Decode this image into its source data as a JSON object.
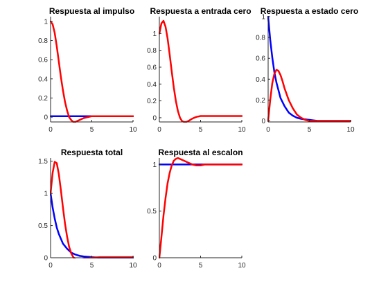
{
  "colors": {
    "blue": "#0000ff",
    "red": "#ff0000",
    "axis": "#262626"
  },
  "chart_data": [
    {
      "type": "line",
      "title": "Respuesta al impulso",
      "xlim": [
        0,
        10
      ],
      "ylim": [
        -0.05,
        1.05
      ],
      "xticks": [
        0,
        5,
        10
      ],
      "yticks": [
        0,
        0.2,
        0.4,
        0.6,
        0.8,
        1
      ],
      "ytick_labels": [
        "0",
        "0.2",
        "0.4",
        "0.6",
        "0.8",
        "1"
      ],
      "series": [
        {
          "color": "blue",
          "x": [
            0,
            10
          ],
          "y": [
            0.01,
            0.01
          ]
        },
        {
          "color": "red",
          "x": [
            0,
            0.25,
            0.5,
            0.75,
            1,
            1.25,
            1.5,
            1.75,
            2,
            2.25,
            2.5,
            2.75,
            3,
            3.5,
            4,
            4.5,
            5,
            5.5,
            6,
            7,
            8,
            9,
            10
          ],
          "y": [
            1.0,
            0.97,
            0.88,
            0.74,
            0.58,
            0.42,
            0.28,
            0.16,
            0.07,
            0.0,
            -0.03,
            -0.05,
            -0.05,
            -0.03,
            -0.01,
            0.0,
            0.01,
            0.01,
            0.01,
            0.01,
            0.01,
            0.01,
            0.01
          ]
        }
      ]
    },
    {
      "type": "line",
      "title": "Respuesta a entrada cero",
      "xlim": [
        0,
        10
      ],
      "ylim": [
        -0.05,
        1.2
      ],
      "xticks": [
        0,
        5,
        10
      ],
      "yticks": [
        0,
        0.2,
        0.4,
        0.6,
        0.8,
        1
      ],
      "ytick_labels": [
        "0",
        "0.2",
        "0.4",
        "0.6",
        "0.8",
        "1"
      ],
      "series": [
        {
          "color": "red",
          "x": [
            0,
            0.25,
            0.5,
            0.75,
            1,
            1.25,
            1.5,
            1.75,
            2,
            2.25,
            2.5,
            2.75,
            3,
            3.25,
            3.5,
            4,
            4.5,
            5,
            6,
            7,
            8,
            9,
            10
          ],
          "y": [
            1.0,
            1.12,
            1.15,
            1.08,
            0.94,
            0.75,
            0.55,
            0.36,
            0.2,
            0.08,
            0.0,
            -0.04,
            -0.05,
            -0.05,
            -0.04,
            -0.01,
            0.01,
            0.02,
            0.02,
            0.02,
            0.02,
            0.02,
            0.02
          ]
        }
      ]
    },
    {
      "type": "line",
      "title": "Respuesta a estado cero",
      "xlim": [
        0,
        10
      ],
      "ylim": [
        -0.01,
        1.0
      ],
      "xticks": [
        0,
        5,
        10
      ],
      "yticks": [
        0,
        0.2,
        0.4,
        0.6,
        0.8,
        1
      ],
      "ytick_labels": [
        "0",
        "0.2",
        "0.4",
        "0.6",
        "0.8",
        "1"
      ],
      "series": [
        {
          "color": "blue",
          "x": [
            0,
            0.25,
            0.5,
            0.75,
            1,
            1.5,
            2,
            2.5,
            3,
            3.5,
            4,
            5,
            6,
            7,
            8,
            10
          ],
          "y": [
            1.0,
            0.78,
            0.61,
            0.47,
            0.37,
            0.22,
            0.14,
            0.08,
            0.05,
            0.03,
            0.02,
            0.01,
            0.0,
            0.0,
            0.0,
            0.0
          ]
        },
        {
          "color": "red",
          "x": [
            0,
            0.25,
            0.5,
            0.75,
            1,
            1.25,
            1.5,
            1.75,
            2,
            2.5,
            3,
            3.5,
            4,
            4.5,
            5,
            6,
            7,
            8,
            10
          ],
          "y": [
            0.0,
            0.2,
            0.36,
            0.45,
            0.49,
            0.48,
            0.44,
            0.38,
            0.31,
            0.2,
            0.12,
            0.06,
            0.03,
            0.01,
            0.0,
            0.0,
            0.0,
            0.0,
            0.0
          ]
        }
      ]
    },
    {
      "type": "line",
      "title": "Respuesta total",
      "xlim": [
        0,
        10
      ],
      "ylim": [
        0,
        1.55
      ],
      "xticks": [
        0,
        5,
        10
      ],
      "yticks": [
        0,
        0.5,
        1,
        1.5
      ],
      "ytick_labels": [
        "0",
        "0.5",
        "1",
        "1.5"
      ],
      "series": [
        {
          "color": "blue",
          "x": [
            0,
            0.25,
            0.5,
            0.75,
            1,
            1.5,
            2,
            2.5,
            3,
            3.5,
            4,
            5,
            6,
            7,
            8,
            10
          ],
          "y": [
            1.0,
            0.78,
            0.61,
            0.47,
            0.37,
            0.22,
            0.14,
            0.08,
            0.05,
            0.03,
            0.02,
            0.01,
            0.0,
            0.0,
            0.0,
            0.0
          ]
        },
        {
          "color": "red",
          "x": [
            0,
            0.25,
            0.5,
            0.75,
            1,
            1.25,
            1.5,
            1.75,
            2,
            2.25,
            2.5,
            2.75,
            3,
            3.25,
            3.5,
            4,
            4.5,
            5,
            6,
            7,
            8,
            9,
            10
          ],
          "y": [
            1.0,
            1.32,
            1.49,
            1.47,
            1.3,
            1.05,
            0.78,
            0.53,
            0.33,
            0.17,
            0.07,
            0.01,
            -0.02,
            -0.03,
            -0.03,
            -0.02,
            -0.01,
            0.0,
            0.01,
            0.01,
            0.01,
            0.01,
            0.01
          ]
        }
      ]
    },
    {
      "type": "line",
      "title": "Respuesta al escalon",
      "xlim": [
        0,
        10
      ],
      "ylim": [
        0,
        1.07
      ],
      "xticks": [
        0,
        5,
        10
      ],
      "yticks": [
        0,
        0.5,
        1
      ],
      "ytick_labels": [
        "0",
        "0.5",
        "1"
      ],
      "series": [
        {
          "color": "blue",
          "x": [
            0,
            10
          ],
          "y": [
            1.0,
            1.0
          ]
        },
        {
          "color": "red",
          "x": [
            0,
            0.25,
            0.5,
            0.75,
            1,
            1.25,
            1.5,
            1.75,
            2,
            2.25,
            2.5,
            2.75,
            3,
            3.5,
            4,
            4.5,
            5,
            5.5,
            6,
            7,
            8,
            9,
            10
          ],
          "y": [
            0.0,
            0.22,
            0.45,
            0.64,
            0.8,
            0.91,
            0.99,
            1.04,
            1.06,
            1.07,
            1.06,
            1.05,
            1.04,
            1.02,
            1.0,
            0.99,
            0.99,
            1.0,
            1.0,
            1.0,
            1.0,
            1.0,
            1.0
          ]
        }
      ]
    }
  ]
}
